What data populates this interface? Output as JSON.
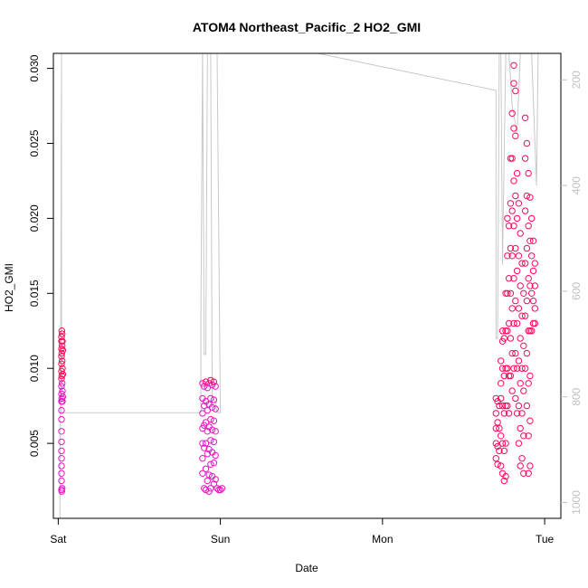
{
  "chart_data": {
    "type": "scatter",
    "title": "ATOM4 Northeast_Pacific_2 HO2_GMI",
    "xlabel": "Date",
    "ylabel": "HO2_GMI",
    "x_ticks": [
      "Sat",
      "Sun",
      "Mon",
      "Tue"
    ],
    "x_range_days": [
      -0.03,
      3.1
    ],
    "ylim": [
      0.0,
      0.031
    ],
    "y_ticks": [
      0.005,
      0.01,
      0.015,
      0.02,
      0.025,
      0.03
    ],
    "y_tick_labels": [
      "0.005",
      "0.010",
      "0.015",
      "0.020",
      "0.025",
      "0.030"
    ],
    "y2_range": [
      1030,
      150
    ],
    "y2_ticks": [
      200,
      400,
      600,
      800,
      1000
    ],
    "y2_tick_labels": [
      "200",
      "400",
      "600",
      "800",
      "1000"
    ],
    "point_color_low": "#e619c0",
    "point_color_high": "#ff0a5a",
    "secondary_line_color": "#c8c8c8",
    "series": [
      {
        "points": [
          [
            0.02,
            0.0121
          ],
          [
            0.02,
            0.0118
          ],
          [
            0.02,
            0.0113
          ],
          [
            0.02,
            0.0108
          ],
          [
            0.02,
            0.0103
          ],
          [
            0.02,
            0.0098
          ],
          [
            0.02,
            0.0093
          ],
          [
            0.02,
            0.0088
          ],
          [
            0.02,
            0.0083
          ],
          [
            0.02,
            0.0078
          ],
          [
            0.02,
            0.0072
          ],
          [
            0.02,
            0.0066
          ],
          [
            0.02,
            0.0058
          ],
          [
            0.02,
            0.0051
          ],
          [
            0.02,
            0.0045
          ],
          [
            0.02,
            0.004
          ],
          [
            0.02,
            0.0035
          ],
          [
            0.02,
            0.003
          ],
          [
            0.02,
            0.0025
          ],
          [
            0.02,
            0.0019
          ],
          [
            0.022,
            0.0125
          ],
          [
            0.022,
            0.011
          ],
          [
            0.022,
            0.0095
          ],
          [
            0.022,
            0.008
          ],
          [
            0.022,
            0.0018
          ],
          [
            0.024,
            0.0123
          ],
          [
            0.024,
            0.0115
          ],
          [
            0.024,
            0.0105
          ],
          [
            0.024,
            0.009
          ],
          [
            0.024,
            0.002
          ],
          [
            0.026,
            0.0118
          ],
          [
            0.026,
            0.01
          ],
          [
            0.026,
            0.0085
          ],
          [
            0.026,
            0.0078
          ],
          [
            0.028,
            0.0112
          ],
          [
            0.028,
            0.0096
          ],
          [
            0.028,
            0.0081
          ]
        ]
      },
      {
        "points": [
          [
            0.89,
            0.009
          ],
          [
            0.89,
            0.008
          ],
          [
            0.89,
            0.007
          ],
          [
            0.89,
            0.006
          ],
          [
            0.89,
            0.005
          ],
          [
            0.89,
            0.004
          ],
          [
            0.89,
            0.003
          ],
          [
            0.9,
            0.0088
          ],
          [
            0.9,
            0.0075
          ],
          [
            0.9,
            0.0062
          ],
          [
            0.9,
            0.0047
          ],
          [
            0.9,
            0.002
          ],
          [
            0.91,
            0.0091
          ],
          [
            0.91,
            0.0078
          ],
          [
            0.91,
            0.0064
          ],
          [
            0.91,
            0.005
          ],
          [
            0.91,
            0.0033
          ],
          [
            0.91,
            0.0019
          ],
          [
            0.92,
            0.0087
          ],
          [
            0.92,
            0.0072
          ],
          [
            0.92,
            0.0058
          ],
          [
            0.92,
            0.0043
          ],
          [
            0.92,
            0.0025
          ],
          [
            0.93,
            0.009
          ],
          [
            0.93,
            0.0076
          ],
          [
            0.93,
            0.0061
          ],
          [
            0.93,
            0.0046
          ],
          [
            0.93,
            0.0029
          ],
          [
            0.93,
            0.0018
          ],
          [
            0.94,
            0.0092
          ],
          [
            0.94,
            0.008
          ],
          [
            0.94,
            0.0066
          ],
          [
            0.94,
            0.0052
          ],
          [
            0.94,
            0.0036
          ],
          [
            0.94,
            0.002
          ],
          [
            0.95,
            0.0089
          ],
          [
            0.95,
            0.0074
          ],
          [
            0.95,
            0.0059
          ],
          [
            0.95,
            0.0044
          ],
          [
            0.95,
            0.0028
          ],
          [
            0.96,
            0.0091
          ],
          [
            0.96,
            0.0079
          ],
          [
            0.96,
            0.0065
          ],
          [
            0.96,
            0.0051
          ],
          [
            0.96,
            0.0037
          ],
          [
            0.96,
            0.0023
          ],
          [
            0.97,
            0.0088
          ],
          [
            0.97,
            0.0073
          ],
          [
            0.97,
            0.0058
          ],
          [
            0.97,
            0.0042
          ],
          [
            0.97,
            0.0026
          ],
          [
            0.98,
            0.002
          ],
          [
            0.99,
            0.0019
          ],
          [
            1.0,
            0.0019
          ],
          [
            1.01,
            0.002
          ]
        ]
      },
      {
        "points": [
          [
            2.7,
            0.008
          ],
          [
            2.7,
            0.007
          ],
          [
            2.7,
            0.006
          ],
          [
            2.7,
            0.005
          ],
          [
            2.7,
            0.004
          ],
          [
            2.71,
            0.0078
          ],
          [
            2.71,
            0.0064
          ],
          [
            2.71,
            0.0048
          ],
          [
            2.71,
            0.0036
          ],
          [
            2.72,
            0.0075
          ],
          [
            2.72,
            0.006
          ],
          [
            2.72,
            0.0045
          ],
          [
            2.73,
            0.009
          ],
          [
            2.73,
            0.0105
          ],
          [
            2.73,
            0.008
          ],
          [
            2.73,
            0.0055
          ],
          [
            2.73,
            0.0035
          ],
          [
            2.74,
            0.0118
          ],
          [
            2.74,
            0.0125
          ],
          [
            2.74,
            0.01
          ],
          [
            2.74,
            0.0075
          ],
          [
            2.74,
            0.005
          ],
          [
            2.74,
            0.003
          ],
          [
            2.75,
            0.012
          ],
          [
            2.75,
            0.0095
          ],
          [
            2.75,
            0.007
          ],
          [
            2.75,
            0.0045
          ],
          [
            2.75,
            0.0025
          ],
          [
            2.76,
            0.015
          ],
          [
            2.76,
            0.0125
          ],
          [
            2.76,
            0.01
          ],
          [
            2.76,
            0.0075
          ],
          [
            2.76,
            0.005
          ],
          [
            2.76,
            0.0028
          ],
          [
            2.77,
            0.02
          ],
          [
            2.77,
            0.0175
          ],
          [
            2.77,
            0.015
          ],
          [
            2.77,
            0.0125
          ],
          [
            2.77,
            0.01
          ],
          [
            2.77,
            0.0075
          ],
          [
            2.78,
            0.0195
          ],
          [
            2.78,
            0.016
          ],
          [
            2.78,
            0.013
          ],
          [
            2.78,
            0.0095
          ],
          [
            2.78,
            0.007
          ],
          [
            2.79,
            0.024
          ],
          [
            2.79,
            0.021
          ],
          [
            2.79,
            0.018
          ],
          [
            2.79,
            0.015
          ],
          [
            2.79,
            0.012
          ],
          [
            2.79,
            0.0095
          ],
          [
            2.8,
            0.027
          ],
          [
            2.8,
            0.024
          ],
          [
            2.8,
            0.0205
          ],
          [
            2.8,
            0.0175
          ],
          [
            2.8,
            0.014
          ],
          [
            2.8,
            0.011
          ],
          [
            2.8,
            0.0085
          ],
          [
            2.81,
            0.0302
          ],
          [
            2.81,
            0.029
          ],
          [
            2.81,
            0.026
          ],
          [
            2.81,
            0.0225
          ],
          [
            2.81,
            0.0195
          ],
          [
            2.81,
            0.016
          ],
          [
            2.81,
            0.013
          ],
          [
            2.81,
            0.01
          ],
          [
            2.82,
            0.0285
          ],
          [
            2.82,
            0.0255
          ],
          [
            2.82,
            0.0215
          ],
          [
            2.82,
            0.018
          ],
          [
            2.82,
            0.0145
          ],
          [
            2.82,
            0.011
          ],
          [
            2.82,
            0.008
          ],
          [
            2.83,
            0.023
          ],
          [
            2.83,
            0.02
          ],
          [
            2.83,
            0.0165
          ],
          [
            2.83,
            0.013
          ],
          [
            2.83,
            0.01
          ],
          [
            2.83,
            0.007
          ],
          [
            2.84,
            0.021
          ],
          [
            2.84,
            0.0175
          ],
          [
            2.84,
            0.014
          ],
          [
            2.84,
            0.0105
          ],
          [
            2.84,
            0.0075
          ],
          [
            2.84,
            0.005
          ],
          [
            2.85,
            0.019
          ],
          [
            2.85,
            0.0155
          ],
          [
            2.85,
            0.012
          ],
          [
            2.85,
            0.009
          ],
          [
            2.85,
            0.006
          ],
          [
            2.85,
            0.0035
          ],
          [
            2.86,
            0.017
          ],
          [
            2.86,
            0.0135
          ],
          [
            2.86,
            0.01
          ],
          [
            2.86,
            0.007
          ],
          [
            2.86,
            0.004
          ],
          [
            2.87,
            0.015
          ],
          [
            2.87,
            0.0115
          ],
          [
            2.87,
            0.0085
          ],
          [
            2.87,
            0.0055
          ],
          [
            2.87,
            0.003
          ],
          [
            2.88,
            0.0267
          ],
          [
            2.88,
            0.024
          ],
          [
            2.88,
            0.0205
          ],
          [
            2.88,
            0.017
          ],
          [
            2.88,
            0.0135
          ],
          [
            2.88,
            0.01
          ],
          [
            2.89,
            0.025
          ],
          [
            2.89,
            0.0215
          ],
          [
            2.89,
            0.018
          ],
          [
            2.89,
            0.0145
          ],
          [
            2.89,
            0.011
          ],
          [
            2.89,
            0.0075
          ],
          [
            2.9,
            0.023
          ],
          [
            2.9,
            0.0195
          ],
          [
            2.9,
            0.016
          ],
          [
            2.9,
            0.0125
          ],
          [
            2.9,
            0.009
          ],
          [
            2.9,
            0.0055
          ],
          [
            2.9,
            0.003
          ],
          [
            2.91,
            0.0214
          ],
          [
            2.91,
            0.0185
          ],
          [
            2.91,
            0.0155
          ],
          [
            2.91,
            0.0125
          ],
          [
            2.91,
            0.0095
          ],
          [
            2.91,
            0.0065
          ],
          [
            2.91,
            0.0035
          ],
          [
            2.92,
            0.02
          ],
          [
            2.92,
            0.0175
          ],
          [
            2.92,
            0.015
          ],
          [
            2.92,
            0.0125
          ],
          [
            2.93,
            0.0185
          ],
          [
            2.93,
            0.0165
          ],
          [
            2.93,
            0.0145
          ],
          [
            2.93,
            0.013
          ],
          [
            2.94,
            0.017
          ],
          [
            2.94,
            0.0155
          ],
          [
            2.94,
            0.014
          ],
          [
            2.94,
            0.013
          ]
        ]
      }
    ],
    "secondary_line": [
      [
        0.01,
        1030
      ],
      [
        0.015,
        700
      ],
      [
        0.018,
        380
      ],
      [
        0.02,
        150
      ],
      [
        0.02,
        830
      ],
      [
        0.025,
        830
      ],
      [
        0.3,
        830
      ],
      [
        0.6,
        830
      ],
      [
        0.88,
        830
      ],
      [
        0.88,
        640
      ],
      [
        0.89,
        150
      ],
      [
        0.9,
        720
      ],
      [
        0.91,
        720
      ],
      [
        0.92,
        150
      ],
      [
        0.94,
        150
      ],
      [
        0.95,
        800
      ],
      [
        0.97,
        810
      ],
      [
        0.98,
        830
      ],
      [
        1.0,
        830
      ],
      [
        0.98,
        150
      ],
      [
        1.6,
        150
      ],
      [
        2.7,
        220
      ],
      [
        2.7,
        690
      ],
      [
        2.71,
        690
      ],
      [
        2.72,
        150
      ],
      [
        2.73,
        150
      ],
      [
        2.74,
        550
      ],
      [
        2.76,
        150
      ],
      [
        2.78,
        150
      ],
      [
        2.8,
        250
      ],
      [
        2.83,
        300
      ],
      [
        2.85,
        150
      ],
      [
        2.92,
        150
      ],
      [
        2.95,
        400
      ],
      [
        2.96,
        150
      ],
      [
        2.98,
        150
      ]
    ]
  }
}
